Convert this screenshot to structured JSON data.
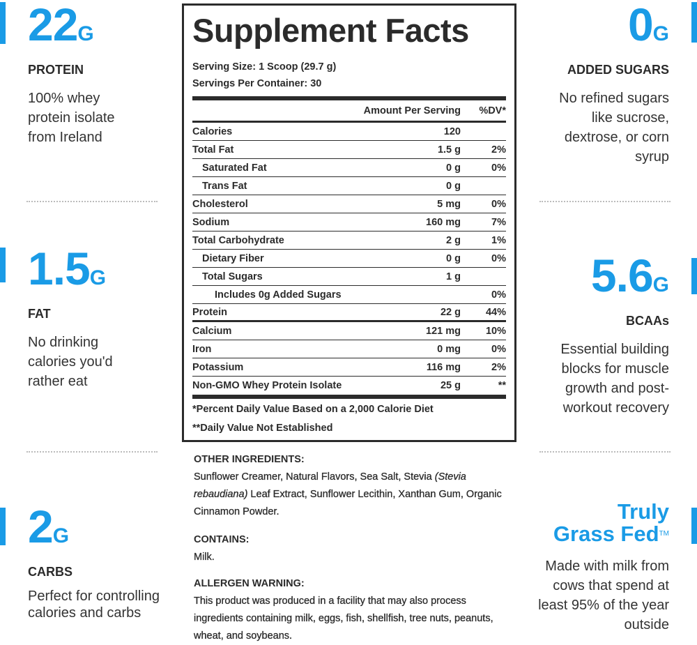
{
  "colors": {
    "accent": "#1a9be6",
    "text": "#2b2b2b"
  },
  "left_stats": [
    {
      "value": "22",
      "unit": "G",
      "label": "PROTEIN",
      "desc": "100% whey protein isolate from Ireland"
    },
    {
      "value": "1.5",
      "unit": "G",
      "label": "FAT",
      "desc": "No drinking calories you'd rather eat"
    },
    {
      "value": "2",
      "unit": "G",
      "label": "CARBS",
      "desc": "Perfect for controlling calories and carbs"
    }
  ],
  "right_stats": [
    {
      "value": "0",
      "unit": "G",
      "label": "ADDED SUGARS",
      "desc": "No refined sugars like sucrose, dextrose, or corn syrup"
    },
    {
      "value": "5.6",
      "unit": "G",
      "label": "BCAAs",
      "desc": "Essential building blocks for muscle growth and post-workout recovery"
    },
    {
      "title1": "Truly",
      "title2": "Grass Fed",
      "tm": "TM",
      "desc": "Made with milk from cows that spend at least 95% of the year outside"
    }
  ],
  "facts": {
    "title": "Supplement Facts",
    "serving_size": "Serving Size: 1 Scoop (29.7 g)",
    "servings": "Servings Per Container: 30",
    "col_amount": "Amount Per Serving",
    "col_dv": "%DV*",
    "rows": [
      {
        "name": "Calories",
        "amount": "120",
        "dv": ""
      },
      {
        "name": "Total Fat",
        "amount": "1.5 g",
        "dv": "2%"
      },
      {
        "name": "Saturated Fat",
        "amount": "0 g",
        "dv": "0%"
      },
      {
        "name": "Trans Fat",
        "amount": "0 g",
        "dv": ""
      },
      {
        "name": "Cholesterol",
        "amount": "5 mg",
        "dv": "0%"
      },
      {
        "name": "Sodium",
        "amount": "160 mg",
        "dv": "7%"
      },
      {
        "name": "Total Carbohydrate",
        "amount": "2 g",
        "dv": "1%"
      },
      {
        "name": "Dietary Fiber",
        "amount": "0 g",
        "dv": "0%"
      },
      {
        "name": "Total Sugars",
        "amount": "1 g",
        "dv": ""
      },
      {
        "name": "Includes 0g Added Sugars",
        "amount": "",
        "dv": "0%"
      },
      {
        "name": "Protein",
        "amount": "22 g",
        "dv": "44%"
      },
      {
        "name": "Calcium",
        "amount": "121 mg",
        "dv": "10%"
      },
      {
        "name": "Iron",
        "amount": "0 mg",
        "dv": "0%"
      },
      {
        "name": "Potassium",
        "amount": "116 mg",
        "dv": "2%"
      },
      {
        "name": "Non-GMO Whey Protein Isolate",
        "amount": "25 g",
        "dv": "**"
      }
    ],
    "foot1": "*Percent Daily Value Based on a 2,000 Calorie Diet",
    "foot2": "**Daily Value Not Established"
  },
  "ingredients": {
    "other_title": "OTHER INGREDIENTS:",
    "other_a": "Sunflower Creamer, Natural Flavors, Sea Salt, Stevia ",
    "other_italic": "(Stevia rebaudiana)",
    "other_b": " Leaf Extract, Sunflower Lecithin, Xanthan Gum, Organic Cinnamon Powder.",
    "contains_title": "CONTAINS:",
    "contains": "Milk.",
    "allergen_title": "ALLERGEN WARNING:",
    "allergen": "This product was produced in a facility that may also process ingredients containing milk, eggs, fish, shellfish, tree nuts, peanuts, wheat, and soybeans."
  }
}
